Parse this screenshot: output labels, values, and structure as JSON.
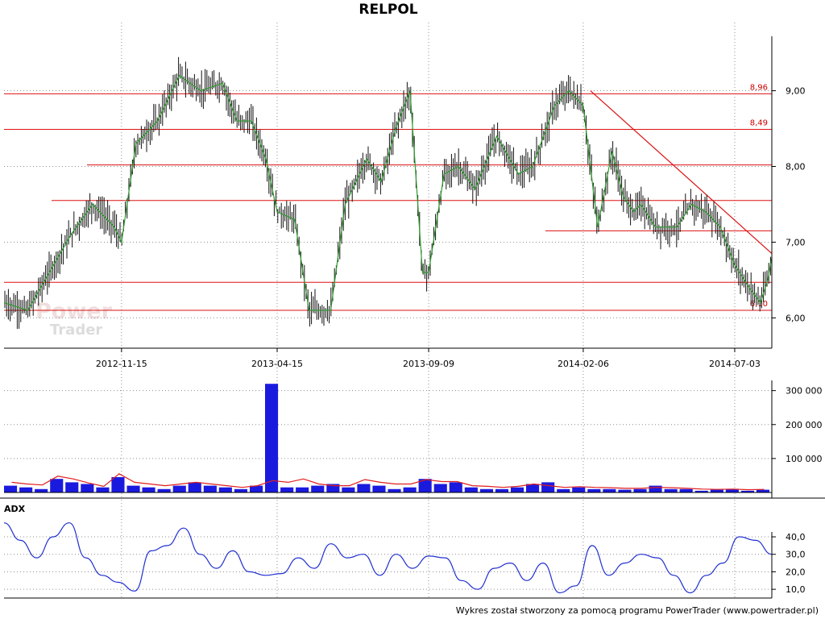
{
  "footer": "Wykres został stworzony za pomocą programu PowerTrader (www.powertrader.pl)",
  "watermark": {
    "line1": "Power",
    "line2": "Trader"
  },
  "chart_data": [
    {
      "type": "candlestick",
      "title": "RELPOL",
      "x_tick_labels": [
        "2012-11-15",
        "2013-04-15",
        "2013-09-09",
        "2014-02-06",
        "2014-07-03"
      ],
      "y_tick_labels": [
        "9,00",
        "8,00",
        "7,00",
        "6,00"
      ],
      "ylim": [
        5.6,
        9.9
      ],
      "grid": true,
      "series": [
        {
          "x": [
            "2012-07-24",
            "2012-08-16",
            "2012-09-06",
            "2012-09-27",
            "2012-10-18",
            "2012-11-08",
            "2012-11-15",
            "2012-11-29",
            "2012-12-20",
            "2013-01-10",
            "2013-01-31",
            "2013-02-21",
            "2013-03-07",
            "2013-03-21",
            "2013-04-04",
            "2013-04-15",
            "2013-05-02",
            "2013-05-16",
            "2013-06-06",
            "2013-06-20",
            "2013-07-11",
            "2013-07-25",
            "2013-08-08",
            "2013-08-22",
            "2013-09-03",
            "2013-09-09",
            "2013-09-24",
            "2013-10-08",
            "2013-10-24",
            "2013-11-14",
            "2013-12-05",
            "2013-12-19",
            "2014-01-09",
            "2014-01-23",
            "2014-02-06",
            "2014-02-20",
            "2014-03-06",
            "2014-03-17",
            "2014-03-27",
            "2014-04-03",
            "2014-04-17",
            "2014-05-08",
            "2014-05-22",
            "2014-06-05",
            "2014-06-19",
            "2014-07-03",
            "2014-07-17",
            "2014-07-28",
            "2014-08-04",
            "2014-08-08"
          ],
          "values": [
            6.2,
            6.1,
            6.6,
            7.1,
            7.5,
            7.2,
            7.0,
            8.3,
            8.6,
            9.2,
            9.0,
            9.1,
            8.6,
            8.6,
            8.1,
            7.4,
            7.3,
            6.1,
            6.1,
            7.5,
            8.1,
            7.8,
            8.5,
            9.0,
            6.6,
            6.6,
            7.9,
            8.0,
            7.7,
            8.4,
            7.9,
            8.0,
            8.8,
            9.0,
            8.8,
            7.2,
            8.2,
            7.6,
            7.4,
            7.5,
            7.2,
            7.2,
            7.5,
            7.4,
            7.2,
            6.7,
            6.4,
            6.2,
            6.5,
            6.8
          ]
        }
      ],
      "horizontal_levels": [
        {
          "value": 8.96,
          "label": "8,96"
        },
        {
          "value": 8.49,
          "label": "8,49"
        },
        {
          "value": 8.02
        },
        {
          "value": 7.55
        },
        {
          "value": 7.15
        },
        {
          "value": 6.47
        },
        {
          "value": 6.1,
          "label": "6,10"
        }
      ],
      "trendlines": [
        {
          "from": [
            "2014-02-13",
            9.0
          ],
          "to": [
            "2014-08-08",
            6.85
          ]
        }
      ]
    },
    {
      "type": "bar",
      "y_tick_labels": [
        "300 000",
        "200 000",
        "100 000"
      ],
      "ylim": [
        0,
        330000
      ],
      "series": [
        {
          "values": [
            20000,
            15000,
            10000,
            40000,
            30000,
            25000,
            15000,
            45000,
            20000,
            15000,
            10000,
            20000,
            30000,
            20000,
            15000,
            10000,
            20000,
            320000,
            15000,
            15000,
            20000,
            25000,
            15000,
            25000,
            20000,
            10000,
            15000,
            40000,
            25000,
            30000,
            15000,
            10000,
            10000,
            15000,
            25000,
            30000,
            10000,
            15000,
            10000,
            10000,
            8000,
            10000,
            20000,
            10000,
            10000,
            5000,
            8000,
            10000,
            5000,
            8000
          ]
        },
        {
          "name": "moving average",
          "values": [
            30000,
            25000,
            22000,
            48000,
            40000,
            28000,
            18000,
            55000,
            30000,
            25000,
            20000,
            25000,
            30000,
            25000,
            20000,
            15000,
            20000,
            35000,
            30000,
            40000,
            25000,
            20000,
            20000,
            38000,
            30000,
            25000,
            25000,
            38000,
            32000,
            32000,
            20000,
            18000,
            15000,
            18000,
            25000,
            20000,
            15000,
            17000,
            15000,
            14000,
            12000,
            12000,
            15000,
            14000,
            12000,
            10000,
            9000,
            10000,
            8000,
            9000
          ]
        }
      ]
    },
    {
      "type": "line",
      "title": "ADX",
      "y_tick_labels": [
        "40,0",
        "30,0",
        "20,0",
        "10,0"
      ],
      "ylim": [
        5,
        52
      ],
      "series": [
        {
          "values": [
            48,
            38,
            28,
            40,
            48,
            28,
            18,
            14,
            9,
            32,
            35,
            45,
            30,
            22,
            32,
            20,
            18,
            19,
            28,
            22,
            36,
            28,
            30,
            18,
            30,
            22,
            29,
            28,
            15,
            10,
            22,
            25,
            15,
            25,
            8,
            12,
            35,
            18,
            25,
            30,
            28,
            18,
            8,
            18,
            25,
            40,
            38,
            30
          ]
        }
      ]
    }
  ]
}
